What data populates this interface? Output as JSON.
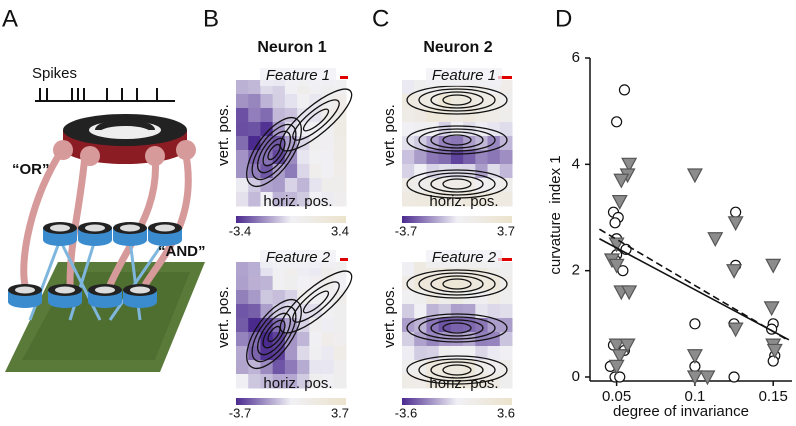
{
  "panels": {
    "A": {
      "label": "A",
      "spikes_label": "Spikes",
      "or_label": "“OR”",
      "and_label": "“AND”"
    },
    "B": {
      "label": "B",
      "title": "Neuron 1",
      "features": [
        {
          "title": "Feature 1",
          "x_label": "horiz. pos.",
          "y_label": "vert. pos.",
          "colorbar_min": -3.4,
          "colorbar_max": 3.4
        },
        {
          "title": "Feature 2",
          "x_label": "horiz. pos.",
          "y_label": "vert. pos.",
          "colorbar_min": -3.7,
          "colorbar_max": 3.7
        }
      ]
    },
    "C": {
      "label": "C",
      "title": "Neuron 2",
      "features": [
        {
          "title": "Feature 1",
          "x_label": "horiz. pos.",
          "y_label": "vert. pos.",
          "colorbar_min": -3.7,
          "colorbar_max": 3.7
        },
        {
          "title": "Feature 2",
          "x_label": "horiz. pos.",
          "y_label": "vert. pos.",
          "colorbar_min": -3.6,
          "colorbar_max": 3.6
        }
      ]
    },
    "D": {
      "label": "D"
    }
  },
  "chart_data": {
    "type": "scatter",
    "x_label": "degree of invariance",
    "y_label": "curvature  index 1",
    "xlim": [
      0.033,
      0.162
    ],
    "ylim": [
      0,
      6
    ],
    "xticks": [
      0.05,
      0.1,
      0.15
    ],
    "yticks": [
      0,
      2,
      4,
      6
    ],
    "series": [
      {
        "marker": "circle",
        "color": "#ffffff",
        "x": [
          0.055,
          0.05,
          0.048,
          0.051,
          0.049,
          0.05,
          0.056,
          0.05,
          0.049,
          0.054,
          0.048,
          0.055,
          0.046,
          0.049,
          0.052,
          0.1,
          0.1,
          0.126,
          0.126,
          0.125,
          0.125,
          0.15,
          0.149,
          0.151,
          0.15
        ],
        "values": [
          5.4,
          4.8,
          3.1,
          3.0,
          2.9,
          2.6,
          2.4,
          2.3,
          2.2,
          2.0,
          0.6,
          0.5,
          0.2,
          0.0,
          0.0,
          1.0,
          0.2,
          3.1,
          2.1,
          1.0,
          0.0,
          1.0,
          0.9,
          0.4,
          0.3
        ]
      },
      {
        "marker": "triangle",
        "color": "#8c8c8c",
        "x": [
          0.058,
          0.057,
          0.053,
          0.052,
          0.05,
          0.047,
          0.05,
          0.053,
          0.058,
          0.05,
          0.057,
          0.052,
          0.05,
          0.1,
          0.113,
          0.126,
          0.125,
          0.126,
          0.1,
          0.1,
          0.108,
          0.15,
          0.149,
          0.15,
          0.151
        ],
        "values": [
          4.0,
          3.8,
          3.7,
          3.3,
          2.5,
          2.2,
          2.1,
          1.6,
          1.6,
          0.6,
          0.6,
          0.4,
          0.2,
          3.8,
          2.6,
          2.9,
          2.0,
          0.9,
          0.4,
          0.0,
          0.0,
          2.1,
          1.3,
          0.6,
          0.5
        ]
      }
    ],
    "fit_lines": [
      {
        "x": [
          0.039,
          0.16
        ],
        "y": [
          2.6,
          0.7
        ],
        "dashed": false
      },
      {
        "x": [
          0.039,
          0.16
        ],
        "y": [
          2.78,
          0.68
        ],
        "dashed": true
      }
    ]
  }
}
